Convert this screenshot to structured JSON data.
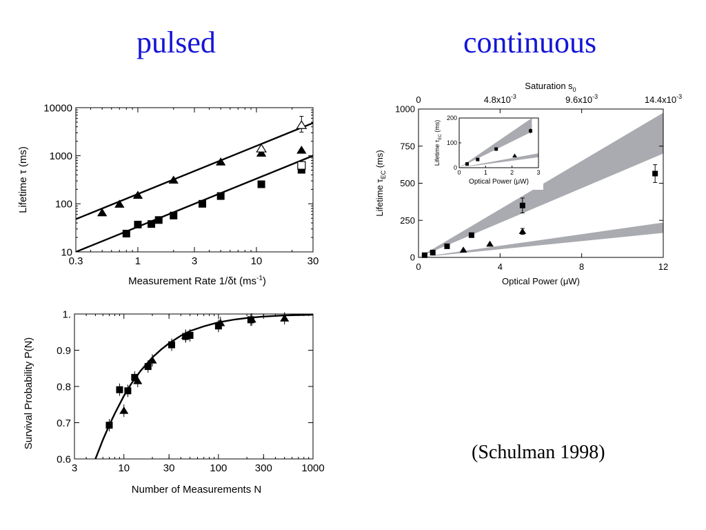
{
  "headings": {
    "left": "pulsed",
    "right": "continuous"
  },
  "citation": "(Schulman 1998)",
  "chart_data": [
    {
      "type": "scatter",
      "xlabel": "Measurement Rate 1/δt (ms",
      "xlabel_sup": "-1",
      "xlabel_close": ")",
      "ylabel": "Lifetime τ (ms)",
      "x_scale": "log",
      "y_scale": "log",
      "xlim": [
        0.3,
        30
      ],
      "ylim": [
        10,
        10000
      ],
      "x_ticks": [
        0.3,
        1,
        3,
        10,
        30
      ],
      "x_tick_labels": [
        "0.3",
        "1",
        "3",
        "10",
        "30"
      ],
      "y_ticks": [
        10,
        100,
        1000,
        10000
      ],
      "y_tick_labels": [
        "10",
        "100",
        "1000",
        "10000"
      ],
      "series": [
        {
          "marker": "triangle",
          "x": [
            0.5,
            0.7,
            1.0,
            2.0,
            5.0,
            11.0,
            24.0
          ],
          "y": [
            65,
            98,
            150,
            310,
            740,
            1130,
            1300
          ]
        },
        {
          "marker": "square",
          "x": [
            0.8,
            1.0,
            1.3,
            1.5,
            2.0,
            3.5,
            5.0,
            11.0,
            24.0
          ],
          "y": [
            24,
            37,
            38,
            46,
            57,
            100,
            145,
            255,
            510
          ]
        },
        {
          "marker": "open-triangle",
          "x": [
            11.0,
            24.0
          ],
          "y": [
            1400,
            4300
          ],
          "err_lo": [
            1250,
            3100
          ],
          "err_hi": [
            1550,
            6600
          ]
        },
        {
          "marker": "open-square",
          "x": [
            24.0
          ],
          "y": [
            630
          ],
          "err_lo": [
            540
          ],
          "err_hi": [
            730
          ]
        }
      ],
      "fit_lines": [
        {
          "from": [
            0.3,
            48
          ],
          "to": [
            30,
            4800
          ]
        },
        {
          "from": [
            0.3,
            10
          ],
          "to": [
            30,
            1000
          ]
        }
      ]
    },
    {
      "type": "scatter",
      "xlabel": "Number of Measurements N",
      "ylabel": "Survival Probability P(N)",
      "x_scale": "log",
      "xlim": [
        3,
        1000
      ],
      "ylim": [
        0.6,
        1.0
      ],
      "x_ticks": [
        3,
        10,
        30,
        100,
        300,
        1000
      ],
      "x_tick_labels": [
        "3",
        "10",
        "30",
        "100",
        "300",
        "1000"
      ],
      "y_ticks": [
        0.6,
        0.7,
        0.8,
        0.9,
        1.0
      ],
      "y_tick_labels": [
        "0.6",
        "0.7",
        "0.8",
        "0.9",
        "1."
      ],
      "series": [
        {
          "marker": "square",
          "x": [
            7,
            9,
            11,
            13,
            18,
            32,
            45,
            50,
            100,
            220
          ],
          "y": [
            0.693,
            0.791,
            0.788,
            0.825,
            0.855,
            0.915,
            0.938,
            0.941,
            0.967,
            0.984
          ]
        },
        {
          "marker": "triangle",
          "x": [
            10,
            14,
            20,
            45,
            105,
            225,
            500
          ],
          "y": [
            0.733,
            0.815,
            0.872,
            0.94,
            0.975,
            0.985,
            0.988
          ]
        }
      ],
      "curve": {
        "x": [
          5,
          6,
          7,
          8,
          10,
          12,
          15,
          20,
          25,
          30,
          40,
          50,
          70,
          100,
          150,
          200,
          300,
          500,
          700,
          1000
        ],
        "y": [
          0.6,
          0.653,
          0.693,
          0.725,
          0.774,
          0.808,
          0.843,
          0.88,
          0.903,
          0.919,
          0.94,
          0.953,
          0.966,
          0.977,
          0.985,
          0.989,
          0.993,
          0.996,
          0.997,
          0.998
        ]
      }
    },
    {
      "type": "scatter",
      "xlabel": "Optical Power (μW)",
      "ylabel_main": "Lifetime τ",
      "ylabel_sub": "EC",
      "ylabel_unit": " (ms)",
      "top_label_main": "Saturation s",
      "top_label_sub": "0",
      "xlim": [
        0,
        12
      ],
      "ylim": [
        0,
        1000
      ],
      "x_ticks": [
        0,
        4,
        8,
        12
      ],
      "x_tick_labels": [
        "0",
        "4",
        "8",
        "12"
      ],
      "y_ticks": [
        0,
        250,
        500,
        750,
        1000
      ],
      "y_tick_labels": [
        "0",
        "250",
        "500",
        "750",
        "1000"
      ],
      "top_ticks": [
        0,
        4,
        8,
        12
      ],
      "top_tick_labels": [
        {
          "main": "0",
          "exp": ""
        },
        {
          "main": "4.8x10",
          "exp": "-3"
        },
        {
          "main": "9.6x10",
          "exp": "-3"
        },
        {
          "main": "14.4x10",
          "exp": "-3"
        }
      ],
      "series": [
        {
          "marker": "square",
          "x": [
            0.3,
            0.7,
            1.4,
            2.6,
            5.1,
            11.6
          ],
          "y": [
            15,
            33,
            75,
            150,
            350,
            565
          ],
          "err_lo": [
            15,
            33,
            75,
            150,
            300,
            505
          ],
          "err_hi": [
            15,
            33,
            75,
            150,
            400,
            625
          ]
        },
        {
          "marker": "triangle",
          "x": [
            2.2,
            3.5,
            5.1
          ],
          "y": [
            50,
            90,
            175
          ],
          "err_lo": [
            50,
            90,
            155
          ],
          "err_hi": [
            50,
            90,
            195
          ]
        }
      ],
      "bands": [
        {
          "upper": [
            [
              0,
              0
            ],
            [
              12,
              975
            ]
          ],
          "lower": [
            [
              0,
              0
            ],
            [
              12,
              700
            ]
          ]
        },
        {
          "upper": [
            [
              0,
              0
            ],
            [
              12,
              235
            ]
          ],
          "lower": [
            [
              0,
              0
            ],
            [
              12,
              165
            ]
          ]
        }
      ],
      "inset": {
        "xlabel": "Optical Power (μW)",
        "ylabel_main": "Lifetime τ",
        "ylabel_sub": "EC",
        "ylabel_unit": " (ms)",
        "xlim": [
          0,
          3
        ],
        "ylim": [
          0,
          200
        ],
        "x_ticks": [
          0,
          1,
          2,
          3
        ],
        "x_tick_labels": [
          "0",
          "1",
          "2",
          "3"
        ],
        "y_ticks": [
          0,
          100,
          200
        ],
        "y_tick_labels": [
          "0",
          "100",
          "200"
        ],
        "series": [
          {
            "marker": "square",
            "x": [
              0.3,
              0.7,
              1.4,
              2.7
            ],
            "y": [
              15,
              33,
              75,
              148
            ],
            "err_lo": [
              15,
              33,
              68,
              138
            ],
            "err_hi": [
              15,
              33,
              82,
              158
            ]
          },
          {
            "marker": "triangle",
            "x": [
              2.1
            ],
            "y": [
              48
            ],
            "err_lo": [
              42
            ],
            "err_hi": [
              54
            ]
          }
        ],
        "bands": [
          {
            "upper": [
              [
                0,
                0
              ],
              [
                2.75,
                200
              ]
            ],
            "lower": [
              [
                0,
                0
              ],
              [
                2.75,
                145
              ]
            ]
          },
          {
            "upper": [
              [
                0,
                0
              ],
              [
                3,
                58
              ]
            ],
            "lower": [
              [
                0,
                0
              ],
              [
                3,
                42
              ]
            ]
          }
        ]
      }
    }
  ]
}
